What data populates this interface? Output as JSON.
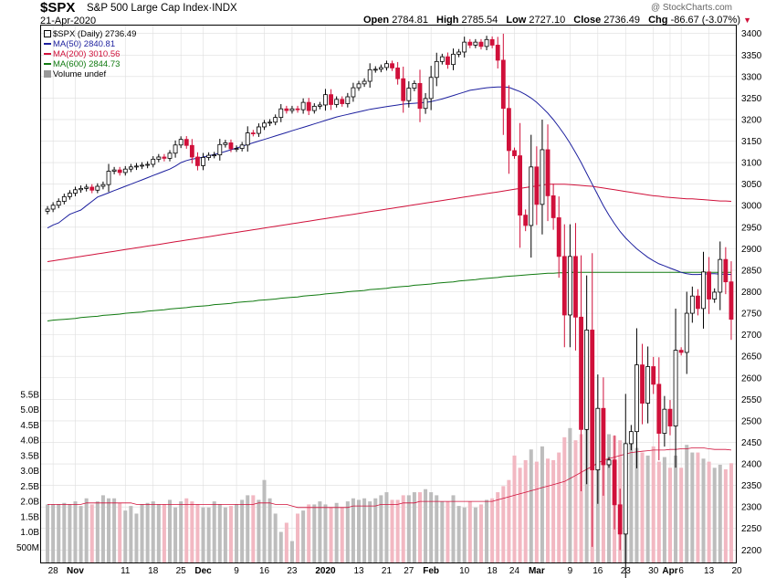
{
  "header": {
    "symbol": "$SPX",
    "name": "S&P 500 Large Cap Index·INDX",
    "date": "21-Apr-2020",
    "open_label": "Open",
    "open": "2784.81",
    "high_label": "High",
    "high": "2785.54",
    "low_label": "Low",
    "low": "2727.10",
    "close_label": "Close",
    "close": "2736.49",
    "chg_label": "Chg",
    "chg": "-86.67 (-3.07%)",
    "chg_arrow": "▼",
    "brand": "@ StockCharts.com"
  },
  "legend": {
    "price": "$SPX (Daily) 2736.49",
    "ma50": "MA(50) 2840.81",
    "ma200": "MA(200) 3010.56",
    "ma600": "MA(600) 2844.73",
    "volume": "Volume undef"
  },
  "colors": {
    "up": "#ffffff",
    "down": "#d0103a",
    "ma50": "#1c1f9e",
    "ma200": "#d0103a",
    "ma600": "#107a10",
    "vol_up": "#bdbdbd",
    "vol_down": "#f2b8c2",
    "grid": "#dedede",
    "axis": "#000000"
  },
  "chart_data": {
    "type": "candlestick",
    "title": "$SPX S&P 500 Large Cap Index (Daily)",
    "ylim": [
      2190,
      3410
    ],
    "yticks": [
      2200,
      2250,
      2300,
      2350,
      2400,
      2450,
      2500,
      2550,
      2600,
      2650,
      2700,
      2750,
      2800,
      2850,
      2900,
      2950,
      3000,
      3050,
      3100,
      3150,
      3200,
      3250,
      3300,
      3350,
      3400
    ],
    "volume_ylim": [
      0,
      5.5
    ],
    "volume_ticks": [
      "500M",
      "1.0B",
      "1.5B",
      "2.0B",
      "2.5B",
      "3.0B",
      "3.5B",
      "4.0B",
      "4.5B",
      "5.0B",
      "5.5B"
    ],
    "volume_tick_values": [
      0.5,
      1.0,
      1.5,
      2.0,
      2.5,
      3.0,
      3.5,
      4.0,
      4.5,
      5.0,
      5.5
    ],
    "x_labels": [
      {
        "label": "28",
        "i": 1
      },
      {
        "label": "Nov",
        "i": 5
      },
      {
        "label": "11",
        "i": 14
      },
      {
        "label": "18",
        "i": 19
      },
      {
        "label": "25",
        "i": 24
      },
      {
        "label": "Dec",
        "i": 28
      },
      {
        "label": "9",
        "i": 34
      },
      {
        "label": "16",
        "i": 39
      },
      {
        "label": "23",
        "i": 44
      },
      {
        "label": "2020",
        "i": 50
      },
      {
        "label": "13",
        "i": 56
      },
      {
        "label": "21",
        "i": 61
      },
      {
        "label": "27",
        "i": 65
      },
      {
        "label": "Feb",
        "i": 69
      },
      {
        "label": "10",
        "i": 75
      },
      {
        "label": "18",
        "i": 80
      },
      {
        "label": "24",
        "i": 84
      },
      {
        "label": "Mar",
        "i": 88
      },
      {
        "label": "9",
        "i": 94
      },
      {
        "label": "16",
        "i": 99
      },
      {
        "label": "23",
        "i": 104
      },
      {
        "label": "30",
        "i": 109
      },
      {
        "label": "Apr",
        "i": 112
      },
      {
        "label": "6",
        "i": 114
      },
      {
        "label": "13",
        "i": 119
      },
      {
        "label": "20",
        "i": 124
      }
    ],
    "close": [
      2992,
      3001,
      3010,
      3021,
      3029,
      3037,
      3040,
      3043,
      3036,
      3045,
      3049,
      3080,
      3083,
      3077,
      3085,
      3090,
      3092,
      3094,
      3096,
      3108,
      3113,
      3110,
      3122,
      3141,
      3154,
      3140,
      3113,
      3093,
      3112,
      3117,
      3118,
      3142,
      3146,
      3132,
      3133,
      3141,
      3169,
      3168,
      3183,
      3192,
      3194,
      3205,
      3225,
      3221,
      3225,
      3223,
      3240,
      3221,
      3231,
      3234,
      3258,
      3235,
      3247,
      3237,
      3253,
      3274,
      3283,
      3289,
      3316,
      3317,
      3321,
      3330,
      3320,
      3295,
      3244,
      3273,
      3284,
      3226,
      3249,
      3298,
      3335,
      3346,
      3328,
      3352,
      3357,
      3380,
      3373,
      3380,
      3370,
      3386,
      3373,
      3338,
      3226,
      3128,
      3116,
      2978,
      2954,
      3090,
      3003,
      3130,
      3023,
      2972,
      2882,
      2746,
      2882,
      2741,
      2480,
      2711,
      2386,
      2529,
      2398,
      2409,
      2305,
      2237,
      2447,
      2475,
      2630,
      2541,
      2626,
      2585,
      2471,
      2527,
      2488,
      2664,
      2659,
      2750,
      2790,
      2761,
      2846,
      2783,
      2799,
      2875,
      2823,
      2736
    ],
    "volume_b": [
      1.9,
      1.9,
      1.9,
      1.95,
      1.9,
      2.0,
      1.85,
      2.1,
      1.9,
      2.0,
      2.2,
      2.1,
      2.1,
      1.95,
      1.7,
      1.85,
      1.6,
      1.9,
      1.95,
      2.0,
      1.9,
      1.9,
      2.05,
      1.8,
      2.0,
      2.1,
      2.0,
      1.9,
      1.8,
      1.8,
      2.0,
      1.9,
      1.8,
      1.85,
      1.9,
      2.05,
      2.2,
      2.2,
      2.05,
      2.7,
      2.1,
      1.6,
      1.0,
      1.3,
      0.7,
      1.6,
      1.7,
      1.9,
      1.9,
      2.0,
      1.9,
      1.8,
      1.95,
      1.8,
      2.0,
      2.1,
      2.05,
      2.1,
      2.0,
      2.1,
      2.2,
      2.3,
      2.05,
      2.05,
      2.2,
      2.2,
      2.3,
      2.3,
      2.4,
      2.3,
      2.2,
      2.0,
      2.0,
      2.2,
      1.85,
      1.8,
      2.0,
      1.8,
      1.9,
      2.05,
      2.1,
      2.3,
      2.5,
      2.7,
      3.5,
      3.1,
      3.35,
      3.7,
      3.3,
      3.8,
      3.4,
      3.35,
      3.6,
      4.1,
      4.4,
      4.0,
      4.2,
      4.6,
      4.7,
      4.5,
      4.15,
      4.2,
      4.15,
      4.0,
      3.8,
      4.05,
      3.75,
      3.6,
      3.5,
      3.8,
      3.3,
      3.45,
      3.1,
      3.5,
      3.1,
      3.85,
      3.6,
      3.6,
      3.4,
      3.3,
      3.1,
      3.2,
      3.05,
      3.25
    ]
  },
  "ma_data": {
    "ma50": [
      2948,
      2955,
      2960,
      2970,
      2980,
      2985,
      2990,
      3000,
      3010,
      3020,
      3025,
      3030,
      3035,
      3040,
      3045,
      3050,
      3055,
      3060,
      3065,
      3070,
      3075,
      3080,
      3085,
      3092,
      3100,
      3105,
      3108,
      3110,
      3113,
      3116,
      3119,
      3122,
      3126,
      3130,
      3134,
      3138,
      3142,
      3146,
      3150,
      3154,
      3158,
      3162,
      3166,
      3170,
      3174,
      3178,
      3182,
      3186,
      3190,
      3194,
      3198,
      3202,
      3206,
      3209,
      3212,
      3215,
      3218,
      3221,
      3224,
      3226,
      3228,
      3230,
      3232,
      3234,
      3236,
      3237,
      3238,
      3239,
      3240,
      3242,
      3245,
      3248,
      3252,
      3256,
      3260,
      3264,
      3268,
      3270,
      3272,
      3274,
      3275,
      3276,
      3276,
      3275,
      3270,
      3265,
      3258,
      3250,
      3240,
      3228,
      3215,
      3200,
      3183,
      3165,
      3145,
      3123,
      3100,
      3075,
      3050,
      3025,
      3000,
      2978,
      2958,
      2940,
      2925,
      2912,
      2900,
      2890,
      2880,
      2872,
      2865,
      2860,
      2855,
      2850,
      2845,
      2842,
      2840,
      2840,
      2841,
      2842,
      2842,
      2841,
      2841,
      2840
    ],
    "ma200": [
      2870,
      2872,
      2874,
      2876,
      2878,
      2880,
      2882,
      2884,
      2886,
      2888,
      2890,
      2892,
      2894,
      2896,
      2898,
      2900,
      2902,
      2904,
      2906,
      2908,
      2910,
      2912,
      2914,
      2916,
      2918,
      2920,
      2922,
      2924,
      2926,
      2928,
      2930,
      2932,
      2934,
      2936,
      2938,
      2940,
      2942,
      2944,
      2946,
      2948,
      2950,
      2952,
      2954,
      2956,
      2958,
      2960,
      2962,
      2964,
      2966,
      2968,
      2970,
      2972,
      2974,
      2976,
      2978,
      2980,
      2982,
      2984,
      2986,
      2988,
      2990,
      2992,
      2994,
      2996,
      2998,
      3000,
      3002,
      3004,
      3006,
      3008,
      3010,
      3012,
      3014,
      3016,
      3018,
      3020,
      3022,
      3024,
      3026,
      3028,
      3030,
      3032,
      3034,
      3036,
      3038,
      3040,
      3042,
      3044,
      3046,
      3048,
      3050,
      3050,
      3050,
      3050,
      3049,
      3048,
      3047,
      3046,
      3045,
      3043,
      3041,
      3039,
      3037,
      3035,
      3033,
      3031,
      3029,
      3027,
      3025,
      3023,
      3022,
      3020,
      3019,
      3018,
      3017,
      3016,
      3016,
      3015,
      3014,
      3013,
      3012,
      3011,
      3011,
      3010
    ],
    "ma600": [
      2732,
      2734,
      2735,
      2736,
      2737,
      2738,
      2740,
      2741,
      2742,
      2743,
      2745,
      2746,
      2747,
      2748,
      2750,
      2751,
      2752,
      2753,
      2755,
      2756,
      2757,
      2758,
      2760,
      2761,
      2762,
      2763,
      2765,
      2766,
      2767,
      2768,
      2770,
      2771,
      2772,
      2773,
      2775,
      2776,
      2777,
      2778,
      2780,
      2781,
      2782,
      2783,
      2785,
      2786,
      2787,
      2788,
      2790,
      2791,
      2792,
      2793,
      2795,
      2796,
      2797,
      2798,
      2800,
      2801,
      2802,
      2803,
      2805,
      2806,
      2807,
      2808,
      2810,
      2811,
      2812,
      2813,
      2815,
      2816,
      2817,
      2818,
      2820,
      2821,
      2822,
      2823,
      2825,
      2826,
      2827,
      2828,
      2830,
      2831,
      2832,
      2833,
      2835,
      2836,
      2837,
      2838,
      2839,
      2840,
      2841,
      2842,
      2843,
      2843,
      2844,
      2844,
      2845,
      2845,
      2845,
      2845,
      2845,
      2845,
      2845,
      2845,
      2845,
      2845,
      2845,
      2845,
      2845,
      2845,
      2845,
      2845,
      2845,
      2845,
      2845,
      2845,
      2845,
      2845,
      2845,
      2845,
      2845,
      2845,
      2845,
      2845,
      2845,
      2845
    ],
    "vol_ma": [
      1.9,
      1.9,
      1.9,
      1.9,
      1.9,
      1.9,
      1.9,
      1.95,
      1.95,
      1.95,
      1.95,
      1.95,
      1.95,
      1.95,
      1.95,
      1.95,
      1.9,
      1.9,
      1.9,
      1.9,
      1.9,
      1.9,
      1.9,
      1.9,
      1.9,
      1.9,
      1.9,
      1.9,
      1.9,
      1.9,
      1.9,
      1.9,
      1.9,
      1.9,
      1.9,
      1.9,
      1.9,
      1.9,
      1.95,
      1.95,
      1.95,
      1.9,
      1.9,
      1.9,
      1.85,
      1.8,
      1.8,
      1.8,
      1.8,
      1.8,
      1.8,
      1.8,
      1.8,
      1.8,
      1.8,
      1.85,
      1.85,
      1.85,
      1.85,
      1.85,
      1.9,
      1.9,
      1.9,
      1.9,
      1.95,
      1.95,
      1.95,
      2.0,
      2.0,
      2.0,
      2.0,
      2.0,
      2.0,
      2.0,
      2.0,
      2.0,
      2.0,
      2.0,
      2.0,
      2.0,
      2.0,
      2.05,
      2.1,
      2.15,
      2.2,
      2.25,
      2.3,
      2.35,
      2.4,
      2.45,
      2.5,
      2.55,
      2.6,
      2.65,
      2.75,
      2.85,
      2.95,
      3.05,
      3.15,
      3.25,
      3.35,
      3.4,
      3.45,
      3.5,
      3.55,
      3.6,
      3.62,
      3.64,
      3.66,
      3.68,
      3.68,
      3.68,
      3.7,
      3.7,
      3.72,
      3.72,
      3.75,
      3.75,
      3.75,
      3.72,
      3.7,
      3.7,
      3.7,
      3.68
    ]
  }
}
